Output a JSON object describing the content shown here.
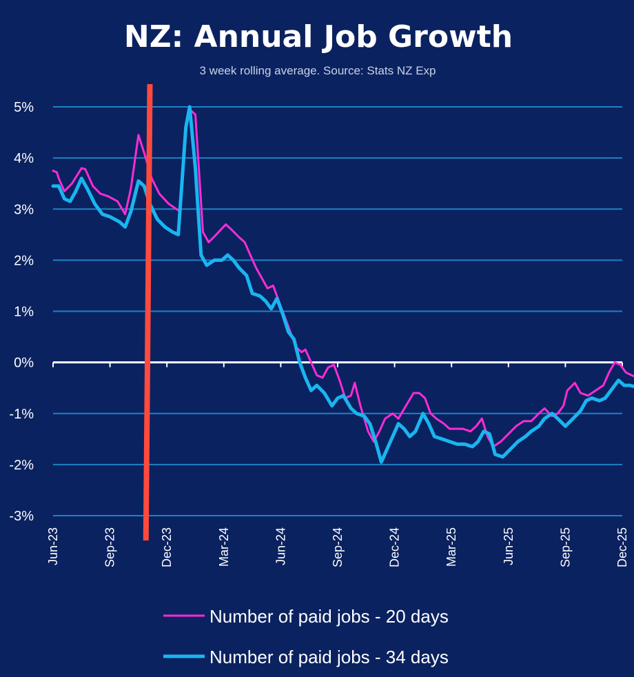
{
  "chart_data": {
    "type": "line",
    "title": "NZ: Annual Job Growth",
    "subtitle": "3 week rolling average. Source: Stats NZ Exp",
    "xlabel": "",
    "ylabel": "",
    "ylim": [
      -3,
      5
    ],
    "y_ticks": [
      5,
      4,
      3,
      2,
      1,
      0,
      -1,
      -2,
      -3
    ],
    "y_tick_labels": [
      "5%",
      "4%",
      "3%",
      "2%",
      "1%",
      "0%",
      "-1%",
      "-2%",
      "-3%"
    ],
    "x_tick_labels": [
      "Jun-23",
      "Sep-23",
      "Dec-23",
      "Mar-24",
      "Jun-24",
      "Sep-24",
      "Dec-24",
      "Mar-25",
      "Jun-25",
      "Sep-25",
      "Dec-25"
    ],
    "grid": true,
    "legend_position": "bottom",
    "colors": {
      "background": "#0b2260",
      "grid": "#1d83c4",
      "zero_line": "#ffffff",
      "marker": "#ff4a3d"
    },
    "marker_line": {
      "date": "Nov-23"
    },
    "series": [
      {
        "name": "Number of paid jobs - 20 days",
        "color": "#ff2bd6",
        "width": 3,
        "points": [
          [
            0.0,
            3.75
          ],
          [
            0.1,
            3.72
          ],
          [
            0.15,
            3.6
          ],
          [
            0.3,
            3.35
          ],
          [
            0.5,
            3.5
          ],
          [
            0.75,
            3.8
          ],
          [
            0.85,
            3.78
          ],
          [
            1.05,
            3.45
          ],
          [
            1.25,
            3.3
          ],
          [
            1.45,
            3.25
          ],
          [
            1.7,
            3.15
          ],
          [
            1.9,
            2.9
          ],
          [
            2.05,
            3.4
          ],
          [
            2.25,
            4.45
          ],
          [
            2.4,
            4.1
          ],
          [
            2.6,
            3.6
          ],
          [
            2.8,
            3.3
          ],
          [
            3.05,
            3.1
          ],
          [
            3.35,
            2.95
          ],
          [
            3.5,
            4.6
          ],
          [
            3.6,
            4.95
          ],
          [
            3.75,
            4.85
          ],
          [
            3.95,
            2.55
          ],
          [
            4.1,
            2.35
          ],
          [
            4.3,
            2.5
          ],
          [
            4.55,
            2.7
          ],
          [
            4.7,
            2.6
          ],
          [
            4.9,
            2.45
          ],
          [
            5.05,
            2.35
          ],
          [
            5.2,
            2.1
          ],
          [
            5.35,
            1.85
          ],
          [
            5.5,
            1.65
          ],
          [
            5.65,
            1.45
          ],
          [
            5.8,
            1.5
          ],
          [
            5.95,
            1.2
          ],
          [
            6.1,
            0.9
          ],
          [
            6.25,
            0.6
          ],
          [
            6.4,
            0.3
          ],
          [
            6.55,
            0.2
          ],
          [
            6.65,
            0.25
          ],
          [
            6.8,
            0.0
          ],
          [
            6.95,
            -0.25
          ],
          [
            7.1,
            -0.3
          ],
          [
            7.25,
            -0.1
          ],
          [
            7.4,
            -0.05
          ],
          [
            7.55,
            -0.35
          ],
          [
            7.7,
            -0.7
          ],
          [
            7.85,
            -0.65
          ],
          [
            7.95,
            -0.4
          ],
          [
            8.1,
            -0.85
          ],
          [
            8.3,
            -1.35
          ],
          [
            8.45,
            -1.55
          ],
          [
            8.6,
            -1.35
          ],
          [
            8.75,
            -1.1
          ],
          [
            8.95,
            -1.0
          ],
          [
            9.1,
            -1.1
          ],
          [
            9.3,
            -0.85
          ],
          [
            9.5,
            -0.6
          ],
          [
            9.65,
            -0.6
          ],
          [
            9.8,
            -0.7
          ],
          [
            9.95,
            -1.0
          ],
          [
            10.1,
            -1.1
          ],
          [
            10.3,
            -1.2
          ],
          [
            10.45,
            -1.3
          ],
          [
            10.65,
            -1.3
          ],
          [
            10.8,
            -1.3
          ],
          [
            11.0,
            -1.35
          ],
          [
            11.15,
            -1.25
          ],
          [
            11.3,
            -1.1
          ],
          [
            11.45,
            -1.45
          ],
          [
            11.6,
            -1.65
          ],
          [
            11.8,
            -1.55
          ],
          [
            12.0,
            -1.4
          ],
          [
            12.2,
            -1.25
          ],
          [
            12.4,
            -1.15
          ],
          [
            12.6,
            -1.15
          ],
          [
            12.8,
            -1.0
          ],
          [
            12.95,
            -0.9
          ],
          [
            13.15,
            -1.05
          ],
          [
            13.3,
            -1.0
          ],
          [
            13.45,
            -0.85
          ],
          [
            13.55,
            -0.55
          ],
          [
            13.75,
            -0.4
          ],
          [
            13.9,
            -0.6
          ],
          [
            14.1,
            -0.65
          ],
          [
            14.3,
            -0.55
          ],
          [
            14.5,
            -0.45
          ],
          [
            14.65,
            -0.2
          ],
          [
            14.8,
            0.0
          ],
          [
            14.95,
            -0.05
          ],
          [
            15.1,
            -0.2
          ],
          [
            15.3,
            -0.27
          ]
        ]
      },
      {
        "name": "Number of paid jobs - 34 days",
        "color": "#1ab5f0",
        "width": 5,
        "points": [
          [
            0.0,
            3.45
          ],
          [
            0.15,
            3.45
          ],
          [
            0.3,
            3.2
          ],
          [
            0.45,
            3.15
          ],
          [
            0.6,
            3.35
          ],
          [
            0.75,
            3.6
          ],
          [
            0.9,
            3.4
          ],
          [
            1.1,
            3.1
          ],
          [
            1.3,
            2.9
          ],
          [
            1.5,
            2.85
          ],
          [
            1.75,
            2.75
          ],
          [
            1.9,
            2.65
          ],
          [
            2.05,
            2.95
          ],
          [
            2.25,
            3.55
          ],
          [
            2.4,
            3.45
          ],
          [
            2.55,
            3.1
          ],
          [
            2.75,
            2.8
          ],
          [
            2.95,
            2.65
          ],
          [
            3.15,
            2.55
          ],
          [
            3.3,
            2.5
          ],
          [
            3.5,
            4.6
          ],
          [
            3.6,
            5.0
          ],
          [
            3.75,
            3.8
          ],
          [
            3.9,
            2.1
          ],
          [
            4.05,
            1.9
          ],
          [
            4.25,
            2.0
          ],
          [
            4.45,
            2.0
          ],
          [
            4.6,
            2.1
          ],
          [
            4.75,
            2.0
          ],
          [
            4.9,
            1.85
          ],
          [
            5.1,
            1.7
          ],
          [
            5.25,
            1.35
          ],
          [
            5.45,
            1.3
          ],
          [
            5.6,
            1.2
          ],
          [
            5.75,
            1.05
          ],
          [
            5.9,
            1.25
          ],
          [
            6.05,
            0.95
          ],
          [
            6.2,
            0.6
          ],
          [
            6.35,
            0.45
          ],
          [
            6.5,
            0.0
          ],
          [
            6.65,
            -0.3
          ],
          [
            6.8,
            -0.55
          ],
          [
            6.95,
            -0.45
          ],
          [
            7.15,
            -0.6
          ],
          [
            7.35,
            -0.85
          ],
          [
            7.5,
            -0.7
          ],
          [
            7.65,
            -0.65
          ],
          [
            7.85,
            -0.9
          ],
          [
            8.0,
            -1.0
          ],
          [
            8.2,
            -1.05
          ],
          [
            8.35,
            -1.2
          ],
          [
            8.5,
            -1.55
          ],
          [
            8.65,
            -1.95
          ],
          [
            8.8,
            -1.7
          ],
          [
            8.95,
            -1.45
          ],
          [
            9.1,
            -1.2
          ],
          [
            9.25,
            -1.3
          ],
          [
            9.4,
            -1.45
          ],
          [
            9.55,
            -1.35
          ],
          [
            9.75,
            -1.0
          ],
          [
            9.9,
            -1.2
          ],
          [
            10.05,
            -1.45
          ],
          [
            10.25,
            -1.5
          ],
          [
            10.45,
            -1.55
          ],
          [
            10.65,
            -1.6
          ],
          [
            10.85,
            -1.6
          ],
          [
            11.05,
            -1.65
          ],
          [
            11.2,
            -1.55
          ],
          [
            11.35,
            -1.35
          ],
          [
            11.5,
            -1.4
          ],
          [
            11.65,
            -1.8
          ],
          [
            11.85,
            -1.85
          ],
          [
            12.05,
            -1.7
          ],
          [
            12.25,
            -1.55
          ],
          [
            12.45,
            -1.45
          ],
          [
            12.6,
            -1.35
          ],
          [
            12.8,
            -1.25
          ],
          [
            12.95,
            -1.1
          ],
          [
            13.15,
            -1.0
          ],
          [
            13.3,
            -1.1
          ],
          [
            13.5,
            -1.25
          ],
          [
            13.7,
            -1.1
          ],
          [
            13.9,
            -0.95
          ],
          [
            14.05,
            -0.75
          ],
          [
            14.2,
            -0.7
          ],
          [
            14.4,
            -0.75
          ],
          [
            14.55,
            -0.7
          ],
          [
            14.75,
            -0.5
          ],
          [
            14.9,
            -0.35
          ],
          [
            15.05,
            -0.45
          ],
          [
            15.2,
            -0.45
          ],
          [
            15.3,
            -0.47
          ]
        ]
      }
    ]
  }
}
